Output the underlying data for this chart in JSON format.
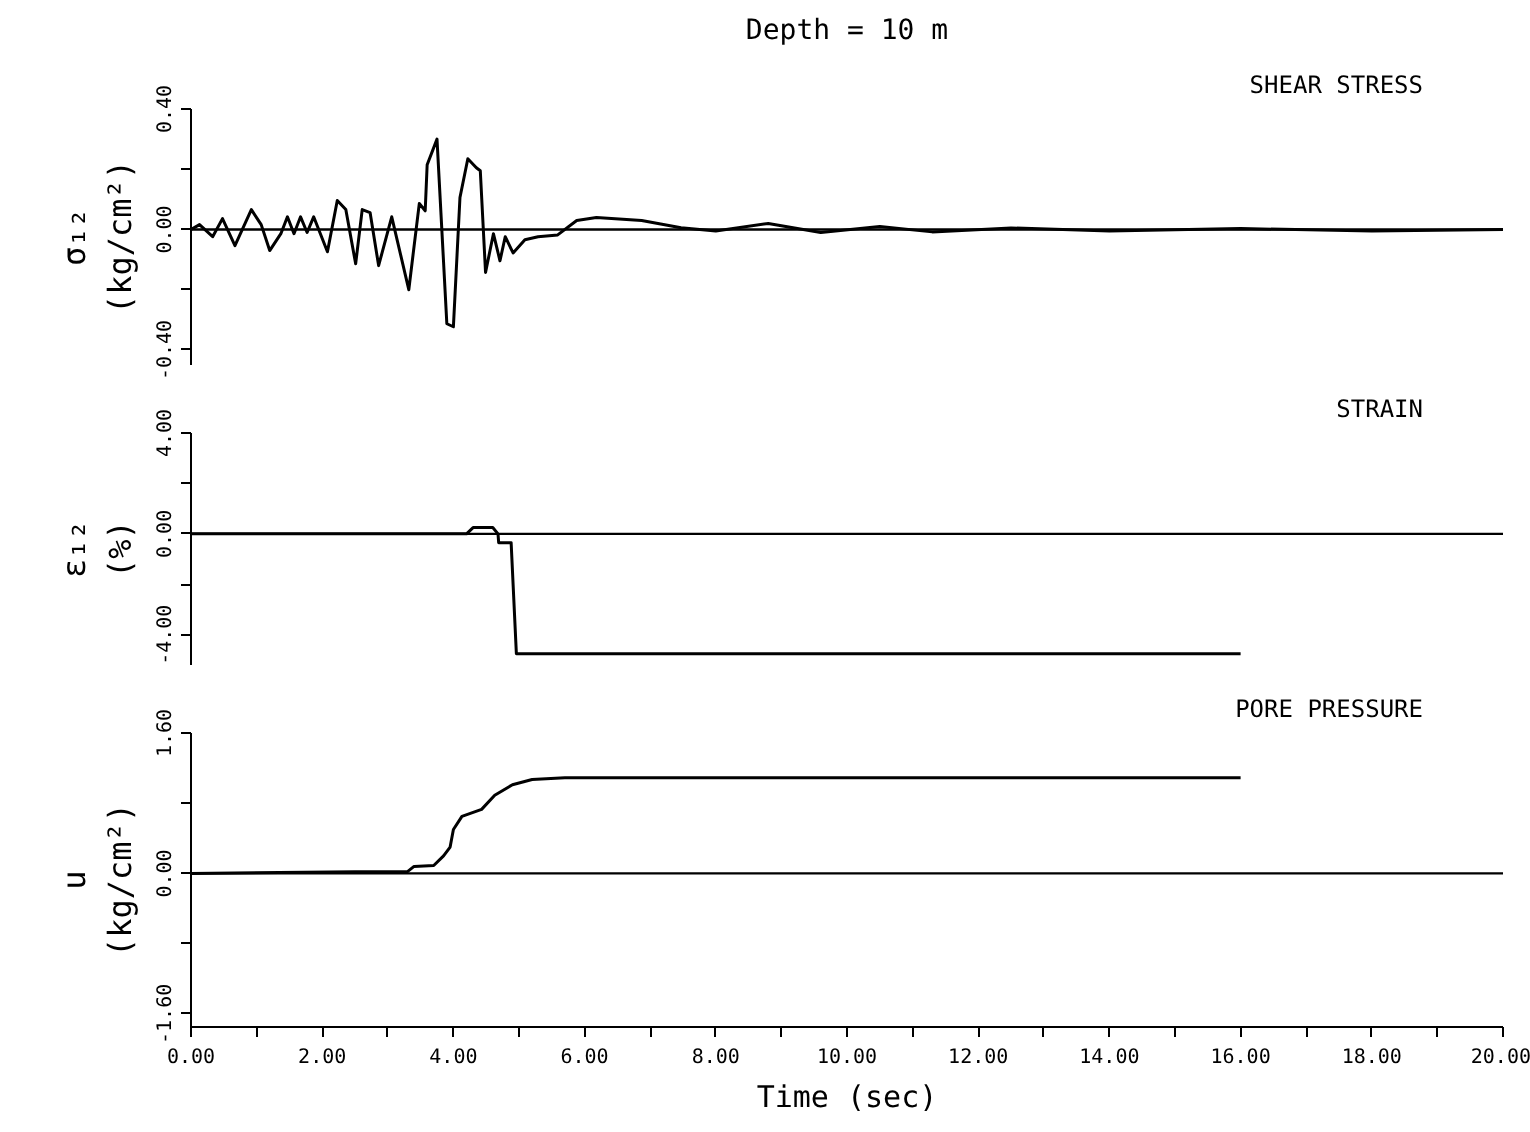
{
  "chart_data": [
    {
      "type": "line",
      "title": "SHEAR STRESS",
      "ylabel": "σ₁₂\n(kg/cm²)",
      "annotations": [
        "Depth = 10 m"
      ],
      "xlim": [
        0,
        20
      ],
      "ylim": [
        -0.45,
        0.4
      ],
      "yticks": [
        {
          "value": -0.4,
          "label": "-0.40"
        },
        {
          "value": -0.2,
          "label": null
        },
        {
          "value": 0,
          "label": "0.00"
        },
        {
          "value": 0.2,
          "label": null
        },
        {
          "value": 0.4,
          "label": "0.40"
        }
      ],
      "tick_labels": "y",
      "grid": false,
      "line_style": "solid",
      "ref_lines": [
        {
          "axis": "y",
          "value": 0,
          "color": "#000000"
        }
      ],
      "series": [
        {
          "color": "#000000",
          "x": [
            0,
            0.13,
            0.33,
            0.48,
            0.67,
            0.92,
            1.07,
            1.2,
            1.37,
            1.47,
            1.57,
            1.67,
            1.77,
            1.87,
            2.08,
            2.23,
            2.36,
            2.51,
            2.61,
            2.73,
            2.86,
            3.06,
            3.32,
            3.48,
            3.57,
            3.6,
            3.75,
            3.9,
            4.0,
            4.1,
            4.22,
            4.35,
            4.41,
            4.49,
            4.61,
            4.71,
            4.79,
            4.91,
            5.09,
            5.29,
            5.59,
            5.88,
            6.18,
            6.87,
            7.47,
            8.0,
            8.8,
            9.6,
            10.5,
            11.3,
            12.5,
            14,
            16,
            18,
            20
          ],
          "values": [
            0,
            0.016,
            -0.024,
            0.036,
            -0.054,
            0.066,
            0.016,
            -0.07,
            -0.014,
            0.042,
            -0.014,
            0.042,
            -0.01,
            0.042,
            -0.074,
            0.096,
            0.066,
            -0.114,
            0.066,
            0.056,
            -0.12,
            0.042,
            -0.2,
            0.086,
            0.062,
            0.215,
            0.3,
            -0.313,
            -0.323,
            0.106,
            0.235,
            0.205,
            0.195,
            -0.143,
            -0.014,
            -0.104,
            -0.024,
            -0.078,
            -0.034,
            -0.024,
            -0.018,
            0.03,
            0.04,
            0.03,
            0.006,
            -0.005,
            0.02,
            -0.01,
            0.01,
            -0.008,
            0.005,
            -0.005,
            0.003,
            -0.005,
            0
          ]
        }
      ]
    },
    {
      "type": "line",
      "title": "STRAIN",
      "ylabel": "ε₁₂\n(%)",
      "xlim": [
        0,
        20
      ],
      "ylim": [
        -5.2,
        4
      ],
      "yticks": [
        {
          "value": -4,
          "label": "-4.00"
        },
        {
          "value": -2,
          "label": null
        },
        {
          "value": 0,
          "label": "0.00"
        },
        {
          "value": 2,
          "label": null
        },
        {
          "value": 4,
          "label": "4.00"
        }
      ],
      "tick_labels": "y",
      "grid": false,
      "line_style": "solid",
      "ref_lines": [
        {
          "axis": "y",
          "value": 0,
          "color": "#000000"
        }
      ],
      "series": [
        {
          "color": "#000000",
          "x": [
            0,
            4.2,
            4.3,
            4.6,
            4.68,
            4.69,
            4.88,
            4.96,
            16
          ],
          "values": [
            0,
            0,
            0.25,
            0.25,
            0,
            -0.35,
            -0.35,
            -4.75,
            -4.75
          ]
        }
      ]
    },
    {
      "type": "line",
      "title": "PORE PRESSURE",
      "ylabel": "u\n(kg/cm²)",
      "xlabel": "Time (sec)",
      "xlim": [
        0,
        20
      ],
      "ylim": [
        -1.75,
        1.6
      ],
      "xticks": [
        {
          "value": 0,
          "label": "0.00"
        },
        {
          "value": 1,
          "label": null
        },
        {
          "value": 2,
          "label": "2.00"
        },
        {
          "value": 3,
          "label": null
        },
        {
          "value": 4,
          "label": "4.00"
        },
        {
          "value": 5,
          "label": null
        },
        {
          "value": 6,
          "label": "6.00"
        },
        {
          "value": 7,
          "label": null
        },
        {
          "value": 8,
          "label": "8.00"
        },
        {
          "value": 9,
          "label": null
        },
        {
          "value": 10,
          "label": "10.00"
        },
        {
          "value": 11,
          "label": null
        },
        {
          "value": 12,
          "label": "12.00"
        },
        {
          "value": 13,
          "label": null
        },
        {
          "value": 14,
          "label": "14.00"
        },
        {
          "value": 15,
          "label": null
        },
        {
          "value": 16,
          "label": "16.00"
        },
        {
          "value": 17,
          "label": null
        },
        {
          "value": 18,
          "label": "18.00"
        },
        {
          "value": 19,
          "label": null
        },
        {
          "value": 20,
          "label": "20.00"
        }
      ],
      "yticks": [
        {
          "value": -1.6,
          "label": "-1.60"
        },
        {
          "value": -0.8,
          "label": null
        },
        {
          "value": 0,
          "label": "0.00"
        },
        {
          "value": 0.8,
          "label": null
        },
        {
          "value": 1.6,
          "label": "1.60"
        }
      ],
      "grid": false,
      "line_style": "solid",
      "ref_lines": [
        {
          "axis": "y",
          "value": 0,
          "color": "#000000"
        }
      ],
      "series": [
        {
          "color": "#000000",
          "x": [
            0,
            2.5,
            3.3,
            3.4,
            3.7,
            3.85,
            3.95,
            4.0,
            4.13,
            4.43,
            4.63,
            4.83,
            4.9,
            5.2,
            5.7,
            16
          ],
          "values": [
            0,
            0.02,
            0.02,
            0.08,
            0.09,
            0.2,
            0.3,
            0.5,
            0.65,
            0.73,
            0.89,
            0.98,
            1.01,
            1.07,
            1.09,
            1.09
          ]
        }
      ]
    }
  ]
}
